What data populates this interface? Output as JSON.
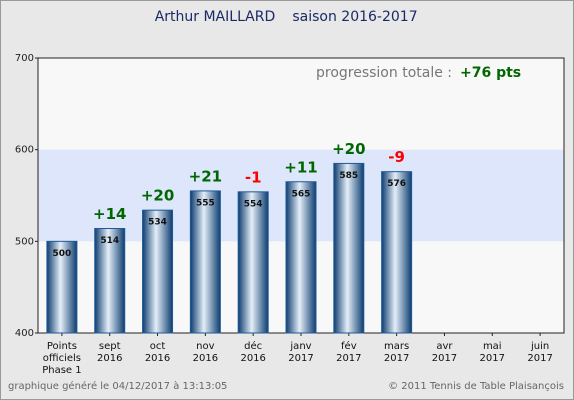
{
  "chart_data": {
    "type": "bar",
    "title": "Arthur MAILLARD",
    "subtitle": "saison 2016-2017",
    "summary_label": "progression totale :",
    "summary_value": "+76 pts",
    "footer_left": "graphique généré le 04/12/2017 à 13:13:05",
    "footer_right": "© 2011 Tennis de Table Plaisançois",
    "categories": [
      [
        "Points",
        "officiels",
        "Phase 1"
      ],
      [
        "sept",
        "2016"
      ],
      [
        "oct",
        "2016"
      ],
      [
        "nov",
        "2016"
      ],
      [
        "déc",
        "2016"
      ],
      [
        "janv",
        "2017"
      ],
      [
        "fév",
        "2017"
      ],
      [
        "mars",
        "2017"
      ],
      [
        "avr",
        "2017"
      ],
      [
        "mai",
        "2017"
      ],
      [
        "juin",
        "2017"
      ]
    ],
    "values": [
      500,
      514,
      534,
      555,
      554,
      565,
      585,
      576,
      null,
      null,
      null
    ],
    "changes": [
      null,
      "+14",
      "+20",
      "+21",
      "-1",
      "+11",
      "+20",
      "-9",
      null,
      null,
      null
    ],
    "positive_color": "#006600",
    "negative_color": "#ff0000",
    "color": "#1f5a96",
    "ylim": [
      400,
      700
    ],
    "yticks": [
      400,
      500,
      600,
      700
    ],
    "band": [
      500,
      600
    ],
    "band_color": "#dde6fb"
  }
}
